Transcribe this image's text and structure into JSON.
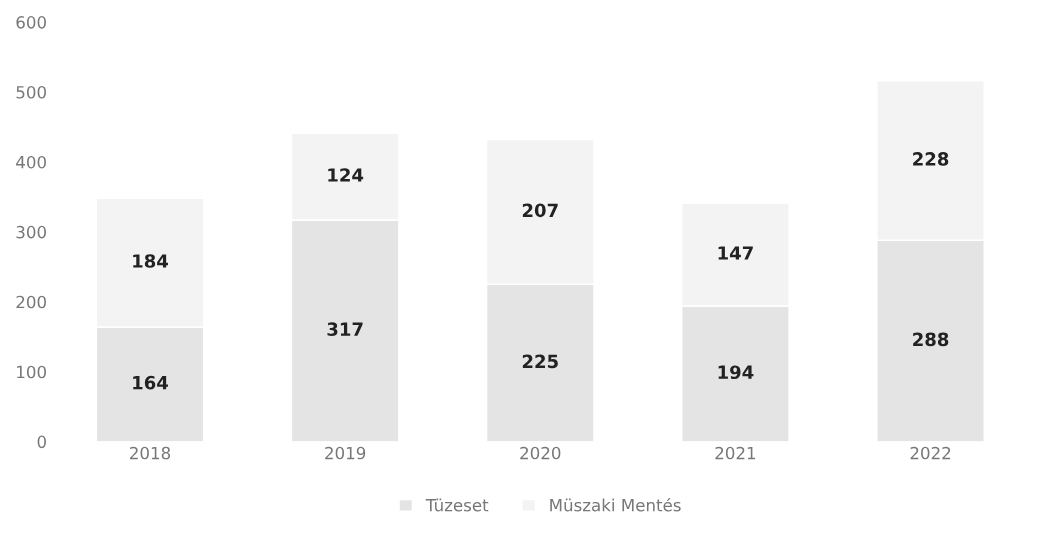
{
  "chart_data": {
    "type": "bar",
    "stacked": true,
    "categories": [
      "2018",
      "2019",
      "2020",
      "2021",
      "2022"
    ],
    "series": [
      {
        "name": "Tüzeset",
        "color": "#e4e4e4",
        "values": [
          164,
          317,
          225,
          194,
          288
        ]
      },
      {
        "name": "Müszaki Mentés",
        "color": "#f3f3f3",
        "values": [
          184,
          124,
          207,
          147,
          228
        ]
      }
    ],
    "ylim": [
      0,
      600
    ],
    "yticks": [
      0,
      100,
      200,
      300,
      400,
      500,
      600
    ],
    "data_labels": true,
    "grid": false,
    "legend": "bottom"
  }
}
